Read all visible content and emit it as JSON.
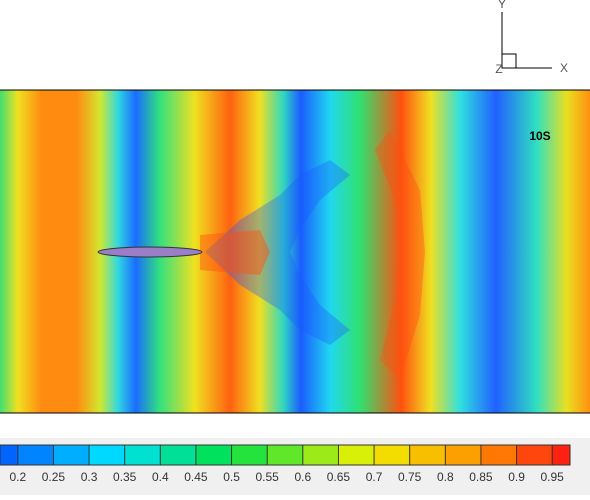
{
  "annotation": "10S",
  "axes_triad": {
    "y": "Y",
    "x": "X",
    "z": "Z"
  },
  "colorbar": {
    "lim": [
      0.175,
      0.975
    ],
    "ticks": [
      {
        "value": 0.2,
        "label": "0.2"
      },
      0.25,
      {
        "value": 0.3,
        "label": "0.3"
      },
      0.35,
      {
        "value": 0.4,
        "label": "0.4"
      },
      0.45,
      {
        "value": 0.5,
        "label": "0.5"
      },
      0.55,
      {
        "value": 0.6,
        "label": "0.6"
      },
      0.65,
      {
        "value": 0.7,
        "label": "0.7"
      },
      0.75,
      {
        "value": 0.8,
        "label": "0.8"
      },
      0.85,
      {
        "value": 0.9,
        "label": "0.9"
      },
      0.95
    ]
  }
}
